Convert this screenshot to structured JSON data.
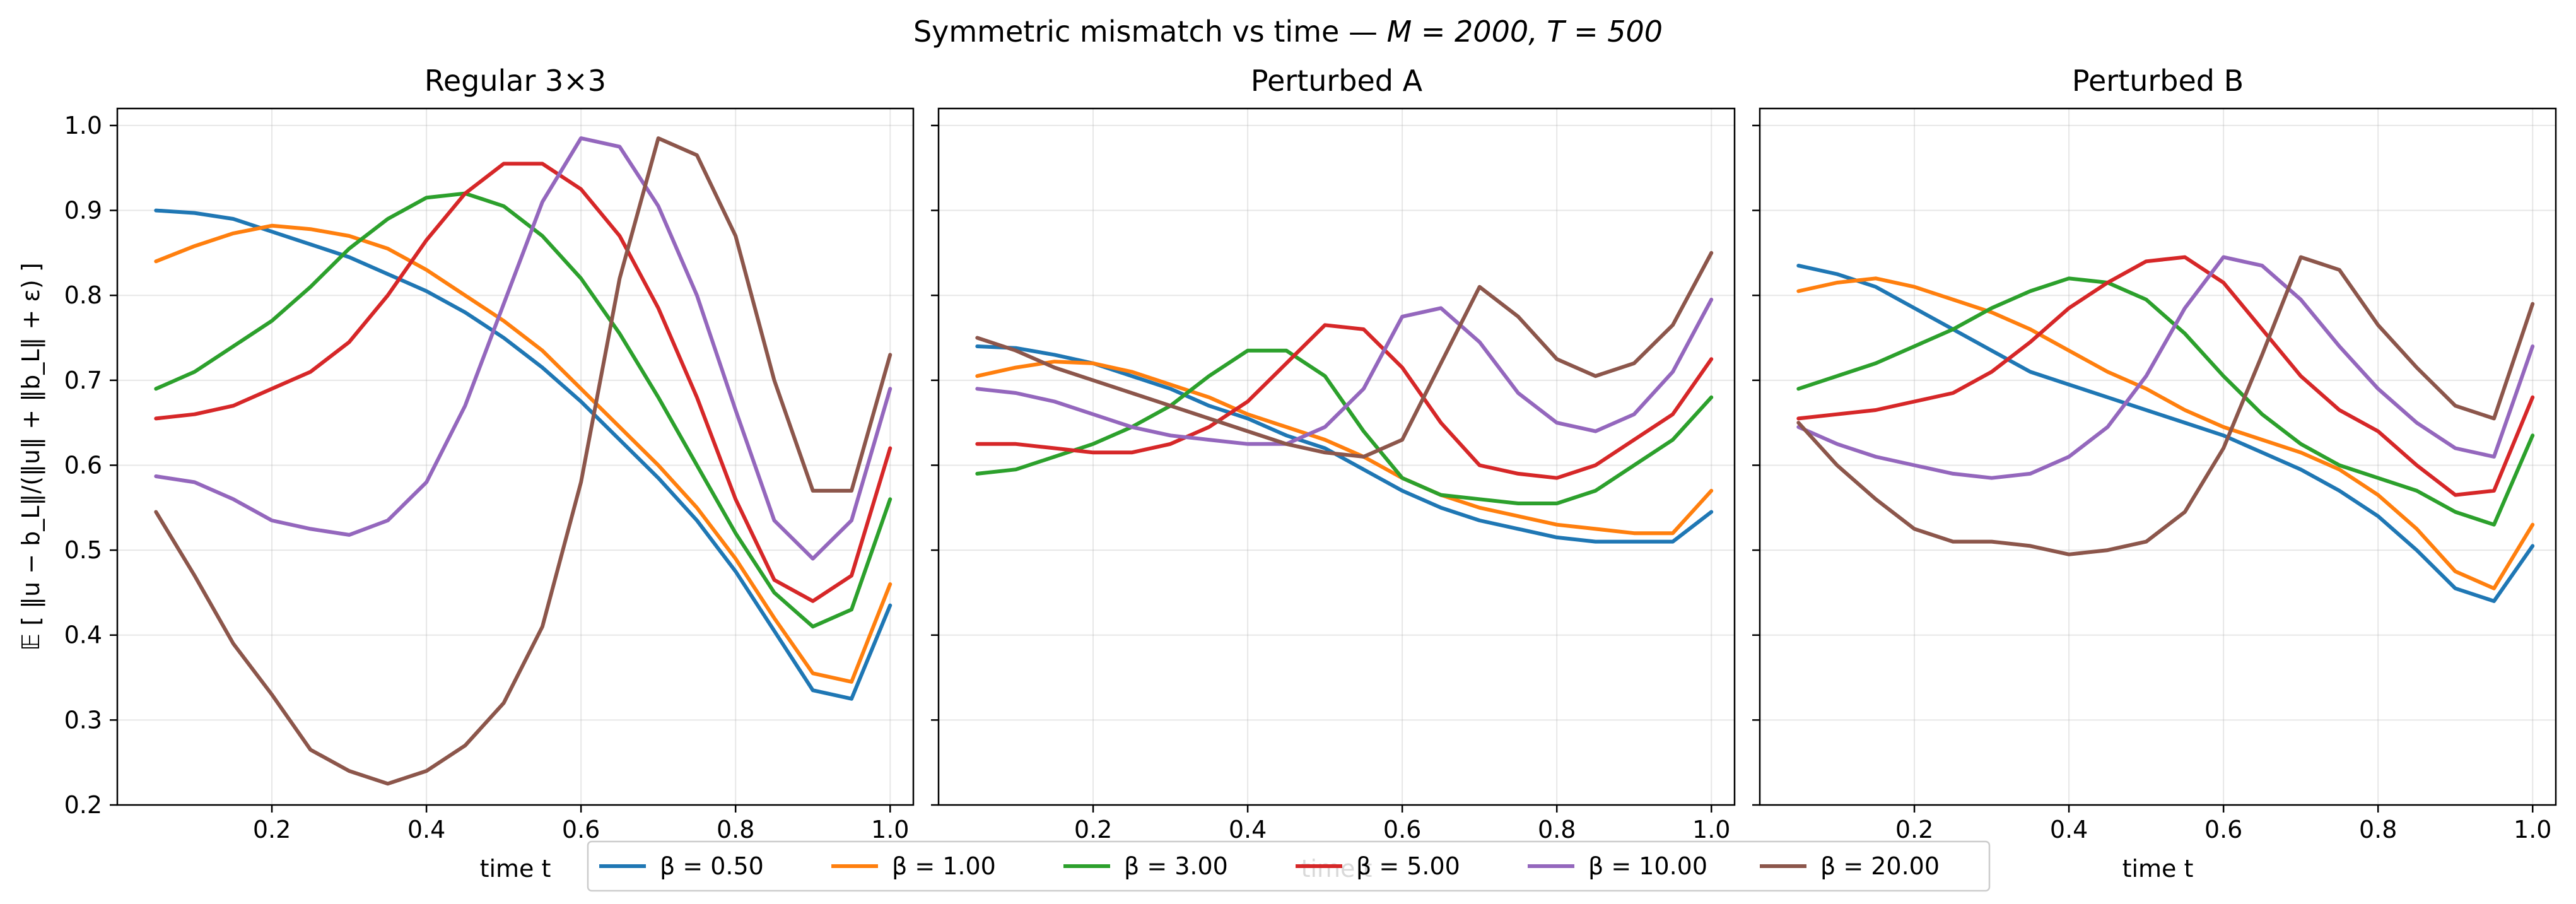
{
  "figure": {
    "suptitle_prefix": "Symmetric mismatch vs time — ",
    "suptitle_math": "M = 2000, T = 500"
  },
  "chart_data": [
    {
      "type": "line",
      "title": "Regular 3×3",
      "xlabel": "time t",
      "ylabel": "𝔼 [ ‖u − b_L‖/(‖u‖ + ‖b_L‖ + ε) ]",
      "xlim": [
        0.0,
        1.03
      ],
      "ylim": [
        0.2,
        1.02
      ],
      "xticks": [
        0.2,
        0.4,
        0.6,
        0.8,
        1.0
      ],
      "yticks": [
        0.2,
        0.3,
        0.4,
        0.5,
        0.6,
        0.7,
        0.8,
        0.9,
        1.0
      ],
      "grid": true,
      "x": [
        0.05,
        0.1,
        0.15,
        0.2,
        0.25,
        0.3,
        0.35,
        0.4,
        0.45,
        0.5,
        0.55,
        0.6,
        0.65,
        0.7,
        0.75,
        0.8,
        0.85,
        0.9,
        0.95,
        1.0
      ],
      "series": [
        {
          "name": "β = 0.50",
          "color": "#1f77b4",
          "values": [
            0.9,
            0.897,
            0.89,
            0.875,
            0.86,
            0.845,
            0.825,
            0.805,
            0.78,
            0.75,
            0.715,
            0.675,
            0.63,
            0.585,
            0.535,
            0.475,
            0.405,
            0.335,
            0.325,
            0.435
          ]
        },
        {
          "name": "β = 1.00",
          "color": "#ff7f0e",
          "values": [
            0.84,
            0.858,
            0.873,
            0.882,
            0.878,
            0.87,
            0.855,
            0.83,
            0.8,
            0.77,
            0.735,
            0.69,
            0.645,
            0.6,
            0.55,
            0.49,
            0.42,
            0.355,
            0.345,
            0.46
          ]
        },
        {
          "name": "β = 3.00",
          "color": "#2ca02c",
          "values": [
            0.69,
            0.71,
            0.74,
            0.77,
            0.81,
            0.855,
            0.89,
            0.915,
            0.92,
            0.905,
            0.87,
            0.82,
            0.755,
            0.68,
            0.6,
            0.52,
            0.45,
            0.41,
            0.43,
            0.56
          ]
        },
        {
          "name": "β = 5.00",
          "color": "#d62728",
          "values": [
            0.655,
            0.66,
            0.67,
            0.69,
            0.71,
            0.745,
            0.8,
            0.865,
            0.92,
            0.955,
            0.955,
            0.925,
            0.87,
            0.785,
            0.68,
            0.56,
            0.465,
            0.44,
            0.47,
            0.62
          ]
        },
        {
          "name": "β = 10.00",
          "color": "#9467bd",
          "values": [
            0.587,
            0.58,
            0.56,
            0.535,
            0.525,
            0.518,
            0.535,
            0.58,
            0.67,
            0.79,
            0.91,
            0.985,
            0.975,
            0.905,
            0.8,
            0.665,
            0.535,
            0.49,
            0.535,
            0.69
          ]
        },
        {
          "name": "β = 20.00",
          "color": "#8c564b",
          "values": [
            0.545,
            0.47,
            0.39,
            0.33,
            0.265,
            0.24,
            0.225,
            0.24,
            0.27,
            0.32,
            0.41,
            0.58,
            0.82,
            0.985,
            0.965,
            0.87,
            0.7,
            0.57,
            0.57,
            0.73
          ]
        }
      ]
    },
    {
      "type": "line",
      "title": "Perturbed A",
      "xlabel": "time t",
      "ylabel": "",
      "xlim": [
        0.0,
        1.03
      ],
      "ylim": [
        0.2,
        1.02
      ],
      "xticks": [
        0.2,
        0.4,
        0.6,
        0.8,
        1.0
      ],
      "yticks": [
        0.2,
        0.3,
        0.4,
        0.5,
        0.6,
        0.7,
        0.8,
        0.9,
        1.0
      ],
      "grid": true,
      "x": [
        0.05,
        0.1,
        0.15,
        0.2,
        0.25,
        0.3,
        0.35,
        0.4,
        0.45,
        0.5,
        0.55,
        0.6,
        0.65,
        0.7,
        0.75,
        0.8,
        0.85,
        0.9,
        0.95,
        1.0
      ],
      "series": [
        {
          "name": "β = 0.50",
          "color": "#1f77b4",
          "values": [
            0.74,
            0.738,
            0.73,
            0.72,
            0.705,
            0.69,
            0.67,
            0.655,
            0.635,
            0.62,
            0.595,
            0.57,
            0.55,
            0.535,
            0.525,
            0.515,
            0.51,
            0.51,
            0.51,
            0.545
          ]
        },
        {
          "name": "β = 1.00",
          "color": "#ff7f0e",
          "values": [
            0.705,
            0.715,
            0.722,
            0.72,
            0.71,
            0.695,
            0.68,
            0.66,
            0.645,
            0.63,
            0.61,
            0.585,
            0.565,
            0.55,
            0.54,
            0.53,
            0.525,
            0.52,
            0.52,
            0.57
          ]
        },
        {
          "name": "β = 3.00",
          "color": "#2ca02c",
          "values": [
            0.59,
            0.595,
            0.61,
            0.625,
            0.645,
            0.67,
            0.705,
            0.735,
            0.735,
            0.705,
            0.64,
            0.585,
            0.565,
            0.56,
            0.555,
            0.555,
            0.57,
            0.6,
            0.63,
            0.68
          ]
        },
        {
          "name": "β = 5.00",
          "color": "#d62728",
          "values": [
            0.625,
            0.625,
            0.62,
            0.615,
            0.615,
            0.625,
            0.645,
            0.675,
            0.72,
            0.765,
            0.76,
            0.715,
            0.65,
            0.6,
            0.59,
            0.585,
            0.6,
            0.63,
            0.66,
            0.725
          ]
        },
        {
          "name": "β = 10.00",
          "color": "#9467bd",
          "values": [
            0.69,
            0.685,
            0.675,
            0.66,
            0.645,
            0.635,
            0.63,
            0.625,
            0.625,
            0.645,
            0.69,
            0.775,
            0.785,
            0.745,
            0.685,
            0.65,
            0.64,
            0.66,
            0.71,
            0.795
          ]
        },
        {
          "name": "β = 20.00",
          "color": "#8c564b",
          "values": [
            0.75,
            0.735,
            0.715,
            0.7,
            0.685,
            0.67,
            0.655,
            0.64,
            0.625,
            0.615,
            0.61,
            0.63,
            0.72,
            0.81,
            0.775,
            0.725,
            0.705,
            0.72,
            0.765,
            0.85
          ]
        }
      ]
    },
    {
      "type": "line",
      "title": "Perturbed B",
      "xlabel": "time t",
      "ylabel": "",
      "xlim": [
        0.0,
        1.03
      ],
      "ylim": [
        0.2,
        1.02
      ],
      "xticks": [
        0.2,
        0.4,
        0.6,
        0.8,
        1.0
      ],
      "yticks": [
        0.2,
        0.3,
        0.4,
        0.5,
        0.6,
        0.7,
        0.8,
        0.9,
        1.0
      ],
      "grid": true,
      "x": [
        0.05,
        0.1,
        0.15,
        0.2,
        0.25,
        0.3,
        0.35,
        0.4,
        0.45,
        0.5,
        0.55,
        0.6,
        0.65,
        0.7,
        0.75,
        0.8,
        0.85,
        0.9,
        0.95,
        1.0
      ],
      "series": [
        {
          "name": "β = 0.50",
          "color": "#1f77b4",
          "values": [
            0.835,
            0.825,
            0.81,
            0.785,
            0.76,
            0.735,
            0.71,
            0.695,
            0.68,
            0.665,
            0.65,
            0.635,
            0.615,
            0.595,
            0.57,
            0.54,
            0.5,
            0.455,
            0.44,
            0.505
          ]
        },
        {
          "name": "β = 1.00",
          "color": "#ff7f0e",
          "values": [
            0.805,
            0.815,
            0.82,
            0.81,
            0.795,
            0.78,
            0.76,
            0.735,
            0.71,
            0.69,
            0.665,
            0.645,
            0.63,
            0.615,
            0.595,
            0.565,
            0.525,
            0.475,
            0.455,
            0.53
          ]
        },
        {
          "name": "β = 3.00",
          "color": "#2ca02c",
          "values": [
            0.69,
            0.705,
            0.72,
            0.74,
            0.76,
            0.785,
            0.805,
            0.82,
            0.815,
            0.795,
            0.755,
            0.705,
            0.66,
            0.625,
            0.6,
            0.585,
            0.57,
            0.545,
            0.53,
            0.635
          ]
        },
        {
          "name": "β = 5.00",
          "color": "#d62728",
          "values": [
            0.655,
            0.66,
            0.665,
            0.675,
            0.685,
            0.71,
            0.745,
            0.785,
            0.815,
            0.84,
            0.845,
            0.815,
            0.76,
            0.705,
            0.665,
            0.64,
            0.6,
            0.565,
            0.57,
            0.68
          ]
        },
        {
          "name": "β = 10.00",
          "color": "#9467bd",
          "values": [
            0.645,
            0.625,
            0.61,
            0.6,
            0.59,
            0.585,
            0.59,
            0.61,
            0.645,
            0.705,
            0.785,
            0.845,
            0.835,
            0.795,
            0.74,
            0.69,
            0.65,
            0.62,
            0.61,
            0.74
          ]
        },
        {
          "name": "β = 20.00",
          "color": "#8c564b",
          "values": [
            0.65,
            0.6,
            0.56,
            0.525,
            0.51,
            0.51,
            0.505,
            0.495,
            0.5,
            0.51,
            0.545,
            0.62,
            0.73,
            0.845,
            0.83,
            0.765,
            0.715,
            0.67,
            0.655,
            0.79
          ]
        }
      ]
    }
  ],
  "legend": {
    "location": "bottom-center",
    "entries": [
      "β = 0.50",
      "β = 1.00",
      "β = 3.00",
      "β = 5.00",
      "β = 10.00",
      "β = 20.00"
    ]
  }
}
